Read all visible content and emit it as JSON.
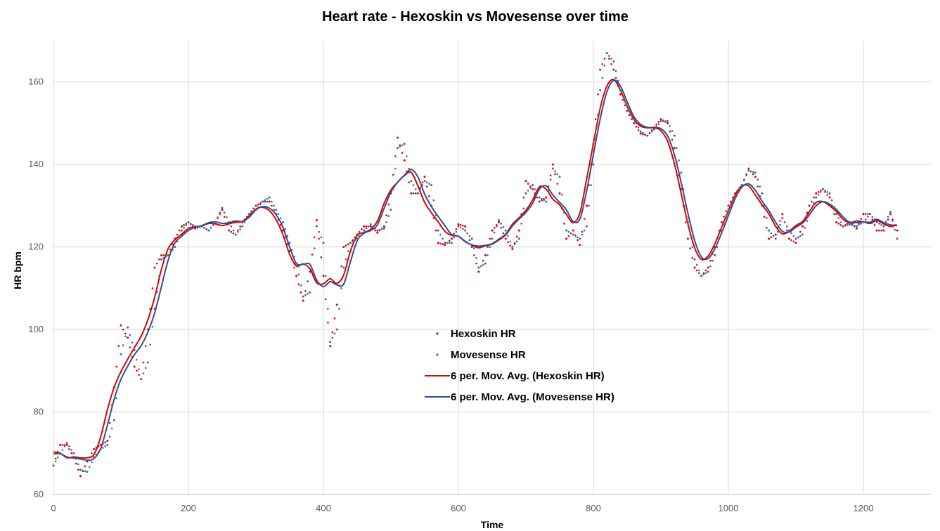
{
  "chart_data": {
    "type": "scatter",
    "title": "Heart rate - Hexoskin vs Movesense over time",
    "xlabel": "Time",
    "ylabel": "HR bpm",
    "xlim": [
      0,
      1300
    ],
    "ylim": [
      60,
      170
    ],
    "x_ticks": [
      "0",
      "200",
      "400",
      "600",
      "800",
      "1000",
      "1200"
    ],
    "y_ticks": [
      "60",
      "80",
      "100",
      "120",
      "140",
      "160"
    ],
    "grid": "vertical and horizontal",
    "legend_position": "center",
    "legend": [
      {
        "label": "Hexoskin HR",
        "marker": "dot",
        "color": "#e00000"
      },
      {
        "label": "Movesense HR",
        "marker": "dot",
        "color": "#44649e"
      },
      {
        "label": "6 per. Mov. Avg. (Hexoskin HR)",
        "marker": "line",
        "color": "#e00000"
      },
      {
        "label": "6 per. Mov. Avg. (Movesense HR)",
        "marker": "line",
        "color": "#2f4f8f"
      }
    ],
    "series": [
      {
        "name": "Hexoskin HR",
        "color": "#e00000",
        "points": [
          [
            0,
            67
          ],
          [
            10,
            72
          ],
          [
            20,
            72
          ],
          [
            30,
            69
          ],
          [
            40,
            64.5
          ],
          [
            50,
            68
          ],
          [
            60,
            71
          ],
          [
            70,
            72
          ],
          [
            80,
            73
          ],
          [
            90,
            86
          ],
          [
            100,
            101
          ],
          [
            110,
            98
          ],
          [
            120,
            91
          ],
          [
            130,
            88
          ],
          [
            140,
            100
          ],
          [
            150,
            115
          ],
          [
            160,
            118
          ],
          [
            170,
            118
          ],
          [
            180,
            122
          ],
          [
            190,
            125
          ],
          [
            200,
            126
          ],
          [
            210,
            124.5
          ],
          [
            220,
            125
          ],
          [
            230,
            124
          ],
          [
            240,
            126
          ],
          [
            250,
            129
          ],
          [
            260,
            124
          ],
          [
            270,
            123
          ],
          [
            280,
            126
          ],
          [
            290,
            128
          ],
          [
            300,
            130
          ],
          [
            310,
            131
          ],
          [
            320,
            131
          ],
          [
            330,
            128
          ],
          [
            340,
            124
          ],
          [
            350,
            119
          ],
          [
            360,
            113
          ],
          [
            370,
            107
          ],
          [
            380,
            114
          ],
          [
            390,
            126.5
          ],
          [
            400,
            113
          ],
          [
            410,
            96
          ],
          [
            420,
            106
          ],
          [
            430,
            120
          ],
          [
            440,
            121
          ],
          [
            450,
            123
          ],
          [
            460,
            125
          ],
          [
            470,
            125
          ],
          [
            480,
            123.5
          ],
          [
            490,
            125
          ],
          [
            500,
            133
          ],
          [
            510,
            146.5
          ],
          [
            520,
            141
          ],
          [
            530,
            133
          ],
          [
            540,
            133
          ],
          [
            550,
            137
          ],
          [
            560,
            130
          ],
          [
            570,
            121
          ],
          [
            580,
            120.5
          ],
          [
            590,
            122
          ],
          [
            600,
            125.5
          ],
          [
            610,
            125
          ],
          [
            620,
            120
          ],
          [
            630,
            114
          ],
          [
            640,
            118
          ],
          [
            650,
            124
          ],
          [
            660,
            126
          ],
          [
            670,
            122
          ],
          [
            680,
            119.5
          ],
          [
            690,
            124
          ],
          [
            700,
            136
          ],
          [
            710,
            134
          ],
          [
            720,
            131
          ],
          [
            730,
            132
          ],
          [
            740,
            140
          ],
          [
            750,
            133
          ],
          [
            760,
            122
          ],
          [
            770,
            124
          ],
          [
            780,
            120.5
          ],
          [
            790,
            130
          ],
          [
            800,
            145
          ],
          [
            810,
            163
          ],
          [
            820,
            167
          ],
          [
            830,
            163
          ],
          [
            840,
            157
          ],
          [
            850,
            153
          ],
          [
            860,
            150
          ],
          [
            870,
            147.5
          ],
          [
            880,
            147
          ],
          [
            890,
            149
          ],
          [
            900,
            151
          ],
          [
            910,
            150
          ],
          [
            920,
            144
          ],
          [
            930,
            134
          ],
          [
            940,
            122
          ],
          [
            950,
            115
          ],
          [
            960,
            113
          ],
          [
            970,
            115
          ],
          [
            980,
            120
          ],
          [
            990,
            126
          ],
          [
            1000,
            130
          ],
          [
            1010,
            133
          ],
          [
            1020,
            135
          ],
          [
            1030,
            139
          ],
          [
            1040,
            137
          ],
          [
            1050,
            130
          ],
          [
            1060,
            122
          ],
          [
            1070,
            123
          ],
          [
            1080,
            128
          ],
          [
            1090,
            122
          ],
          [
            1100,
            121
          ],
          [
            1110,
            125
          ],
          [
            1120,
            130
          ],
          [
            1130,
            133
          ],
          [
            1140,
            134
          ],
          [
            1150,
            132
          ],
          [
            1160,
            126
          ],
          [
            1170,
            125
          ],
          [
            1180,
            126
          ],
          [
            1190,
            124.5
          ],
          [
            1200,
            128
          ],
          [
            1210,
            128
          ],
          [
            1220,
            124
          ],
          [
            1230,
            124
          ],
          [
            1240,
            128
          ],
          [
            1250,
            124
          ]
        ]
      },
      {
        "name": "Movesense HR",
        "color": "#44649e",
        "points": [
          [
            0,
            67
          ],
          [
            10,
            70
          ],
          [
            20,
            72.5
          ],
          [
            30,
            70
          ],
          [
            40,
            66
          ],
          [
            50,
            65.5
          ],
          [
            60,
            69
          ],
          [
            70,
            71
          ],
          [
            80,
            72
          ],
          [
            90,
            78
          ],
          [
            100,
            94
          ],
          [
            110,
            100.5
          ],
          [
            120,
            95
          ],
          [
            130,
            88
          ],
          [
            140,
            92
          ],
          [
            150,
            105
          ],
          [
            160,
            117
          ],
          [
            170,
            118
          ],
          [
            180,
            120
          ],
          [
            190,
            124
          ],
          [
            200,
            126
          ],
          [
            210,
            125
          ],
          [
            220,
            125
          ],
          [
            230,
            124
          ],
          [
            240,
            126
          ],
          [
            250,
            129.5
          ],
          [
            260,
            126
          ],
          [
            270,
            123
          ],
          [
            280,
            125
          ],
          [
            290,
            128
          ],
          [
            300,
            129
          ],
          [
            310,
            131
          ],
          [
            320,
            132
          ],
          [
            330,
            129
          ],
          [
            340,
            126
          ],
          [
            350,
            121
          ],
          [
            360,
            116
          ],
          [
            370,
            108
          ],
          [
            380,
            109
          ],
          [
            390,
            125
          ],
          [
            400,
            121
          ],
          [
            410,
            97
          ],
          [
            420,
            100
          ],
          [
            430,
            115
          ],
          [
            440,
            121
          ],
          [
            450,
            122
          ],
          [
            460,
            124
          ],
          [
            470,
            125.5
          ],
          [
            480,
            124
          ],
          [
            490,
            124.5
          ],
          [
            500,
            129
          ],
          [
            510,
            144
          ],
          [
            520,
            145
          ],
          [
            530,
            136
          ],
          [
            540,
            133
          ],
          [
            550,
            136
          ],
          [
            560,
            135
          ],
          [
            570,
            124
          ],
          [
            580,
            121
          ],
          [
            590,
            121
          ],
          [
            600,
            125
          ],
          [
            610,
            124
          ],
          [
            620,
            122
          ],
          [
            630,
            115
          ],
          [
            640,
            116
          ],
          [
            650,
            122
          ],
          [
            660,
            126.5
          ],
          [
            670,
            124
          ],
          [
            680,
            120
          ],
          [
            690,
            122
          ],
          [
            700,
            133
          ],
          [
            710,
            135
          ],
          [
            720,
            132
          ],
          [
            730,
            131
          ],
          [
            740,
            139
          ],
          [
            750,
            137
          ],
          [
            760,
            124
          ],
          [
            770,
            123
          ],
          [
            780,
            122
          ],
          [
            790,
            125
          ],
          [
            800,
            140
          ],
          [
            810,
            158
          ],
          [
            820,
            167
          ],
          [
            830,
            165
          ],
          [
            840,
            158
          ],
          [
            850,
            154
          ],
          [
            860,
            151
          ],
          [
            870,
            148
          ],
          [
            880,
            147
          ],
          [
            890,
            148.5
          ],
          [
            900,
            150.5
          ],
          [
            910,
            150.5
          ],
          [
            920,
            147
          ],
          [
            930,
            138
          ],
          [
            940,
            126
          ],
          [
            950,
            117
          ],
          [
            960,
            113
          ],
          [
            970,
            114
          ],
          [
            980,
            118
          ],
          [
            990,
            124
          ],
          [
            1000,
            129
          ],
          [
            1010,
            132
          ],
          [
            1020,
            135
          ],
          [
            1030,
            138.5
          ],
          [
            1040,
            138
          ],
          [
            1050,
            133
          ],
          [
            1060,
            124
          ],
          [
            1070,
            122
          ],
          [
            1080,
            127
          ],
          [
            1090,
            124
          ],
          [
            1100,
            122
          ],
          [
            1110,
            123
          ],
          [
            1120,
            128
          ],
          [
            1130,
            132
          ],
          [
            1140,
            134
          ],
          [
            1150,
            133
          ],
          [
            1160,
            128
          ],
          [
            1170,
            125
          ],
          [
            1180,
            125.5
          ],
          [
            1190,
            125
          ],
          [
            1200,
            126
          ],
          [
            1210,
            128
          ],
          [
            1220,
            126
          ],
          [
            1230,
            125
          ],
          [
            1240,
            128.5
          ],
          [
            1250,
            122
          ]
        ]
      }
    ]
  }
}
